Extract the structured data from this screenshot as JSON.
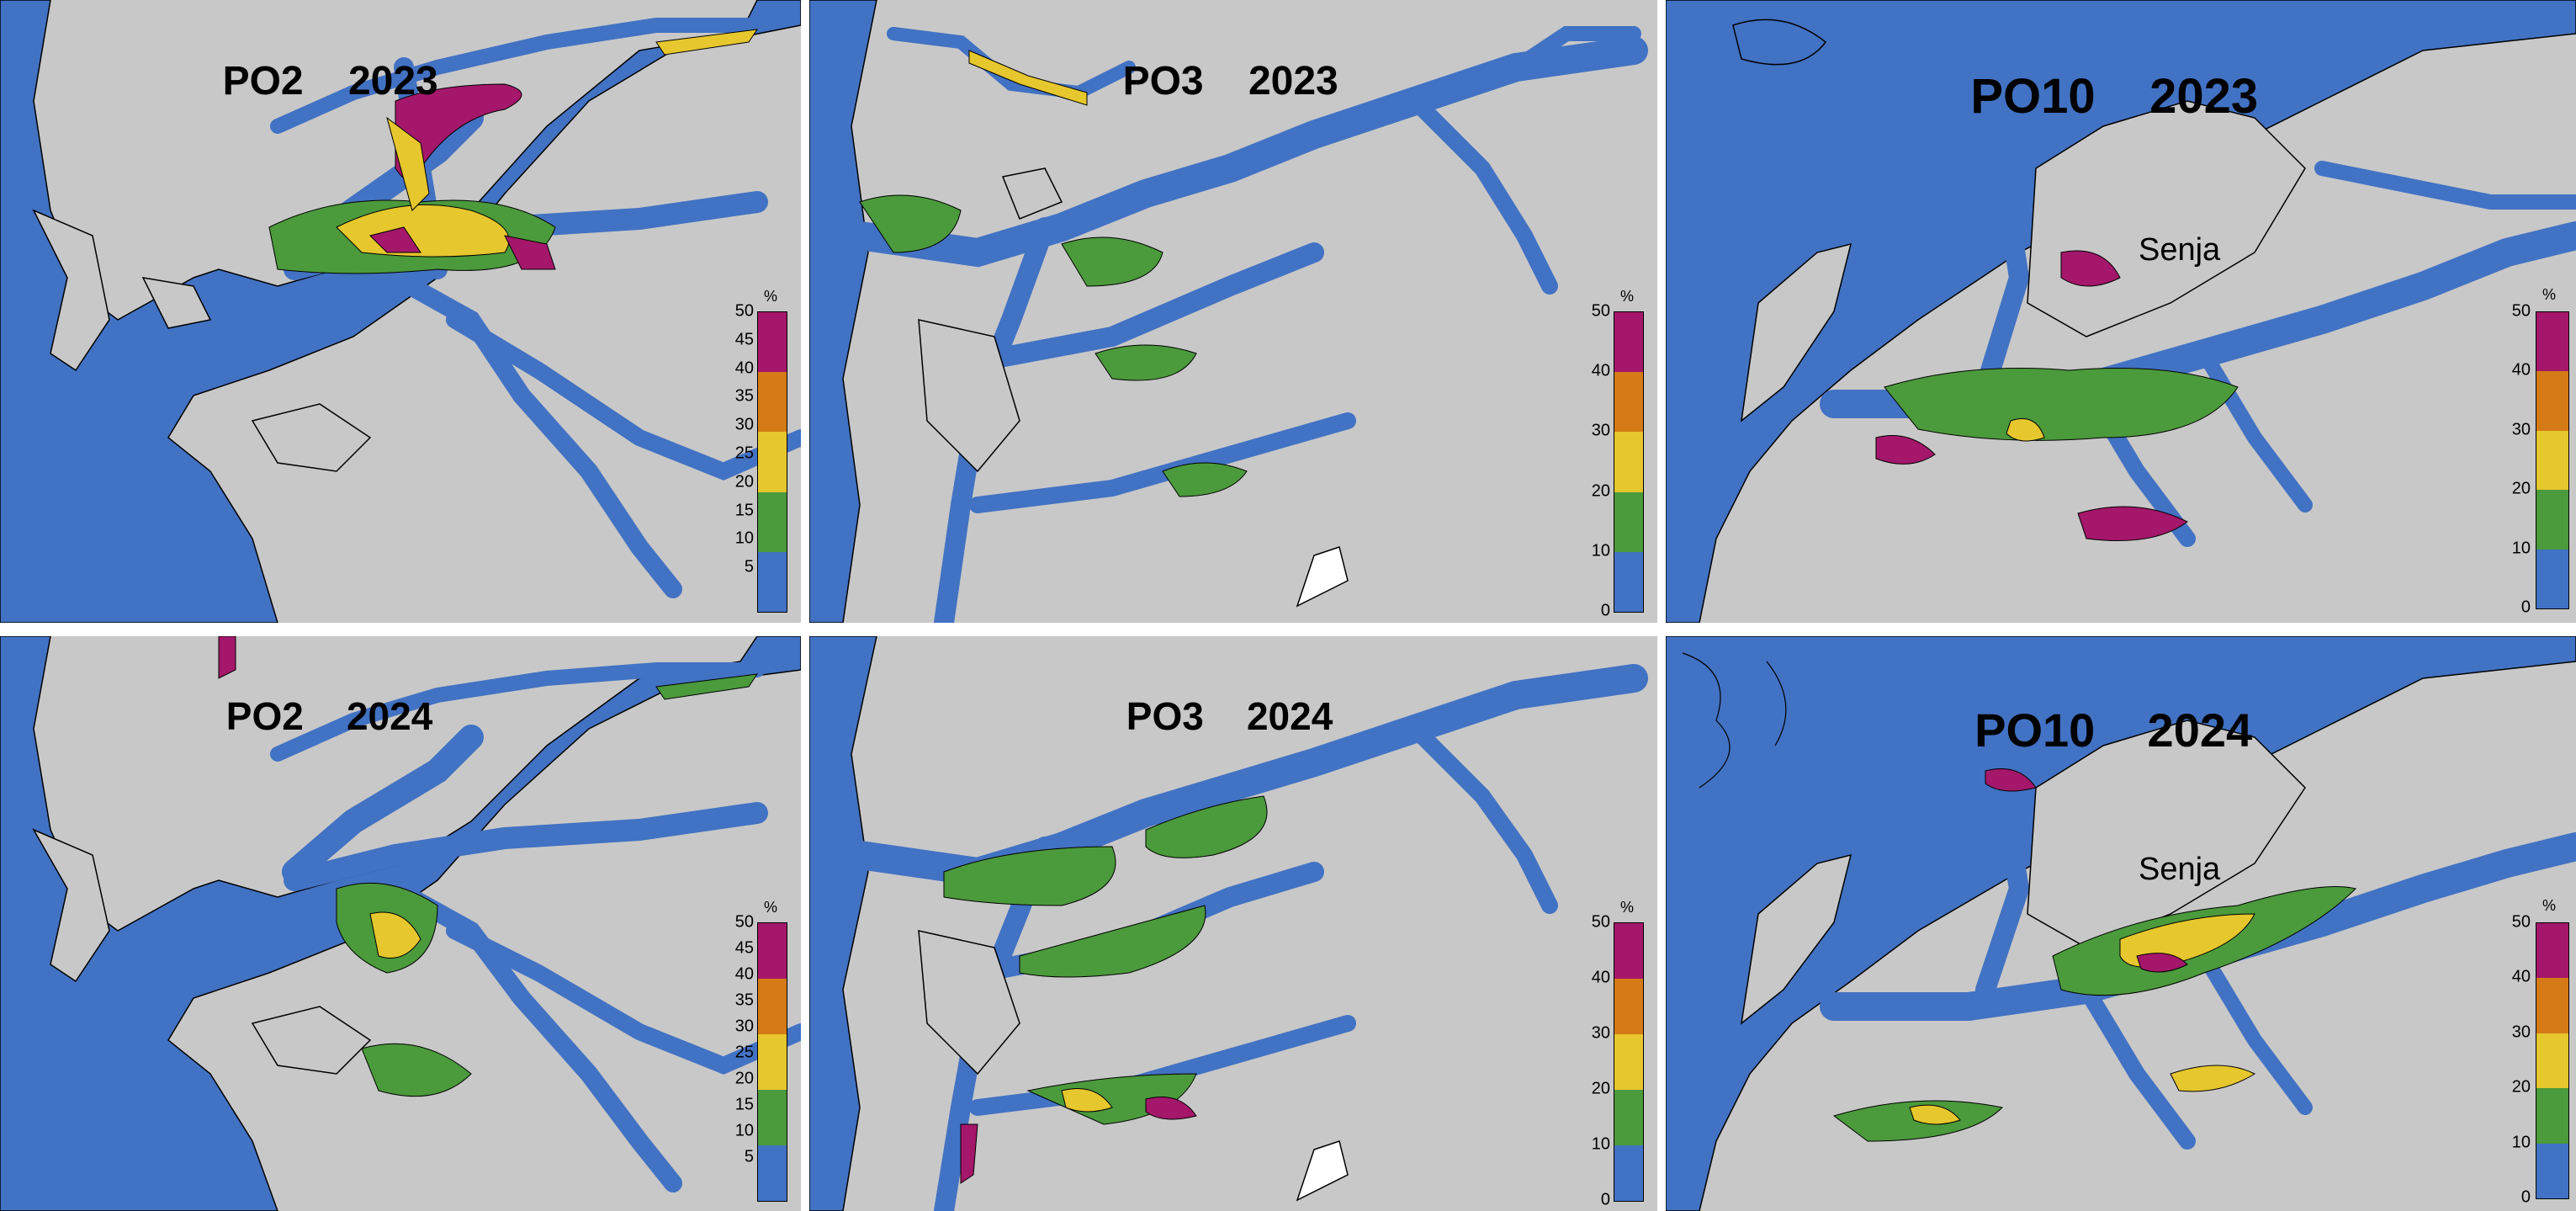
{
  "colors": {
    "water": "#4272c3",
    "land": "#c8c8c8",
    "low": "#4b9a3c",
    "mid": "#e6c72d",
    "high": "#d47b18",
    "top": "#a4176a"
  },
  "panels": [
    {
      "id": "po2-2023",
      "region": "PO2",
      "year": "2023",
      "colorbar": {
        "unit": "%",
        "ticks": [
          "50",
          "45",
          "40",
          "35",
          "30",
          "25",
          "20",
          "15",
          "10",
          "5"
        ],
        "segments": [
          "#a4176a",
          "#d47b18",
          "#e6c72d",
          "#4b9a3c",
          "#4272c3"
        ]
      }
    },
    {
      "id": "po3-2023",
      "region": "PO3",
      "year": "2023",
      "colorbar": {
        "unit": "%",
        "ticks": [
          "50",
          "40",
          "30",
          "20",
          "10",
          "0"
        ],
        "segments": [
          "#a4176a",
          "#d47b18",
          "#e6c72d",
          "#4b9a3c",
          "#4272c3"
        ]
      }
    },
    {
      "id": "po10-2023",
      "region": "PO10",
      "year": "2023",
      "place": "Senja",
      "colorbar": {
        "unit": "%",
        "ticks": [
          "50",
          "40",
          "30",
          "20",
          "10",
          "0"
        ],
        "segments": [
          "#a4176a",
          "#d47b18",
          "#e6c72d",
          "#4b9a3c",
          "#4272c3"
        ]
      }
    },
    {
      "id": "po2-2024",
      "region": "PO2",
      "year": "2024",
      "colorbar": {
        "unit": "%",
        "ticks": [
          "50",
          "45",
          "40",
          "35",
          "30",
          "25",
          "20",
          "15",
          "10",
          "5"
        ],
        "segments": [
          "#a4176a",
          "#d47b18",
          "#e6c72d",
          "#4b9a3c",
          "#4272c3"
        ]
      }
    },
    {
      "id": "po3-2024",
      "region": "PO3",
      "year": "2024",
      "colorbar": {
        "unit": "%",
        "ticks": [
          "50",
          "40",
          "30",
          "20",
          "10",
          "0"
        ],
        "segments": [
          "#a4176a",
          "#d47b18",
          "#e6c72d",
          "#4b9a3c",
          "#4272c3"
        ]
      }
    },
    {
      "id": "po10-2024",
      "region": "PO10",
      "year": "2024",
      "place": "Senja",
      "colorbar": {
        "unit": "%",
        "ticks": [
          "50",
          "40",
          "30",
          "20",
          "10",
          "0"
        ],
        "segments": [
          "#a4176a",
          "#d47b18",
          "#e6c72d",
          "#4b9a3c",
          "#4272c3"
        ]
      }
    }
  ]
}
